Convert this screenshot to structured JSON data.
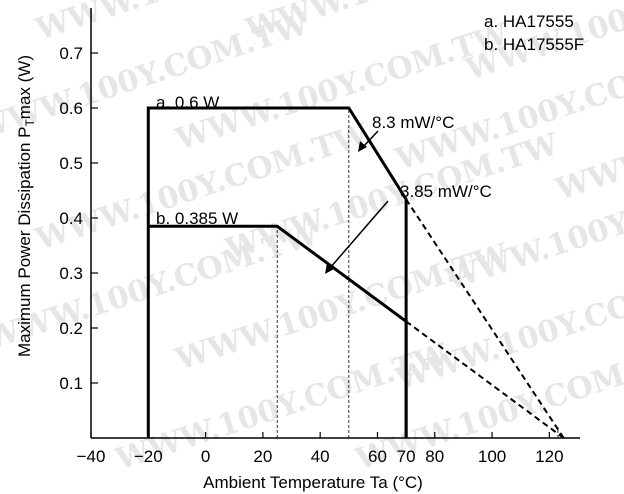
{
  "chart_data": {
    "type": "line",
    "title": "",
    "xlabel": "Ambient Temperature  Ta  (°C)",
    "ylabel_main": "Maximum Power Dissipation  P",
    "ylabel_sub": "T",
    "ylabel_tail": "max  (W)",
    "xlim": [
      -40,
      130
    ],
    "ylim": [
      0,
      0.8
    ],
    "x_ticks": [
      {
        "value": -40,
        "label": "−40"
      },
      {
        "value": -20,
        "label": "−20"
      },
      {
        "value": 0,
        "label": "0"
      },
      {
        "value": 20,
        "label": "20"
      },
      {
        "value": 40,
        "label": "40"
      },
      {
        "value": 60,
        "label": "60"
      },
      {
        "value": 70,
        "label": "70"
      },
      {
        "value": 80,
        "label": "80"
      },
      {
        "value": 100,
        "label": "100"
      },
      {
        "value": 120,
        "label": "120"
      }
    ],
    "y_ticks": [
      {
        "value": 0.1,
        "label": "0.1"
      },
      {
        "value": 0.2,
        "label": "0.2"
      },
      {
        "value": 0.3,
        "label": "0.3"
      },
      {
        "value": 0.4,
        "label": "0.4"
      },
      {
        "value": 0.5,
        "label": "0.5"
      },
      {
        "value": 0.6,
        "label": "0.6"
      },
      {
        "value": 0.7,
        "label": "0.7"
      }
    ],
    "grid": false,
    "legend": [
      "a. HA17555",
      "b. HA17555F"
    ],
    "legend_position": "top-right",
    "series": [
      {
        "id": "a",
        "name": "a. HA17555",
        "points": [
          [
            -20,
            0
          ],
          [
            -20,
            0.6
          ],
          [
            50,
            0.6
          ],
          [
            70,
            0.434
          ],
          [
            70,
            0
          ]
        ],
        "dashed_extension": [
          [
            70,
            0.434
          ],
          [
            125,
            0
          ]
        ]
      },
      {
        "id": "b",
        "name": "b. HA17555F",
        "points": [
          [
            -20,
            0.385
          ],
          [
            25,
            0.385
          ],
          [
            70,
            0.212
          ],
          [
            70,
            0
          ]
        ],
        "dashed_extension": [
          [
            70,
            0.212
          ],
          [
            125,
            0
          ]
        ]
      }
    ],
    "guide_lines": [
      {
        "x": 25,
        "from": 0,
        "to": 0.385
      },
      {
        "x": 50,
        "from": 0,
        "to": 0.6
      },
      {
        "x": 123,
        "from": 0,
        "to": 0.02
      }
    ],
    "annotations": {
      "a_level": "a. 0.6 W",
      "b_level": "b. 0.385 W",
      "a_slope": "8.3 mW/°C",
      "b_slope": "3.85 mW/°C"
    },
    "watermark": "WWW.100Y.COM.TW"
  }
}
